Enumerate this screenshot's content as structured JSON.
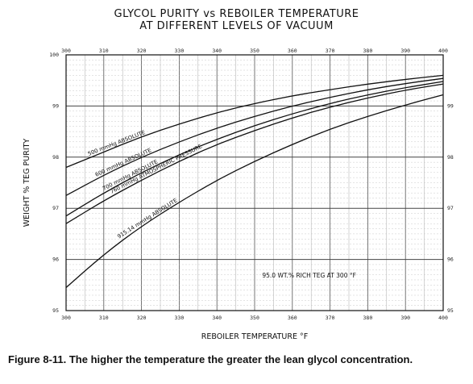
{
  "chart_data": {
    "type": "line",
    "title": "GLYCOL PURITY vs REBOILER TEMPERATURE",
    "subtitle": "AT DIFFERENT LEVELS OF VACUUM",
    "xlabel": "REBOILER TEMPERATURE °F",
    "ylabel": "WEIGHT % TEG PURITY",
    "xlim": [
      300,
      400
    ],
    "ylim": [
      95,
      100
    ],
    "x_ticks": [
      "300",
      "310",
      "320",
      "330",
      "340",
      "350",
      "360",
      "370",
      "380",
      "390",
      "400"
    ],
    "y_ticks": [
      "95",
      "96",
      "97",
      "98",
      "99",
      "100"
    ],
    "y_ticks_right": [
      "95",
      "96",
      "97",
      "98",
      "99"
    ],
    "grid": true,
    "annotation": "95.0 WT.% RICH TEG AT 300 °F",
    "series": [
      {
        "name": "500 mmHg ABSOLUTE",
        "x": [
          300,
          310,
          320,
          330,
          340,
          350,
          360,
          370,
          380,
          390,
          400
        ],
        "y": [
          97.8,
          98.1,
          98.4,
          98.65,
          98.87,
          99.05,
          99.2,
          99.32,
          99.43,
          99.52,
          99.6
        ]
      },
      {
        "name": "600 mmHg ABSOLUTE",
        "x": [
          300,
          310,
          320,
          330,
          340,
          350,
          360,
          370,
          380,
          390,
          400
        ],
        "y": [
          97.25,
          97.65,
          98.0,
          98.3,
          98.57,
          98.8,
          99.0,
          99.17,
          99.32,
          99.44,
          99.54
        ]
      },
      {
        "name": "700 mmHg ABSOLUTE",
        "x": [
          300,
          310,
          320,
          330,
          340,
          350,
          360,
          370,
          380,
          390,
          400
        ],
        "y": [
          96.85,
          97.3,
          97.7,
          98.05,
          98.35,
          98.62,
          98.85,
          99.05,
          99.22,
          99.36,
          99.48
        ]
      },
      {
        "name": "760 mmHg ATMOSPHERIC PRESSURE",
        "x": [
          300,
          310,
          320,
          330,
          340,
          350,
          360,
          370,
          380,
          390,
          400
        ],
        "y": [
          96.7,
          97.15,
          97.55,
          97.92,
          98.25,
          98.52,
          98.77,
          98.98,
          99.16,
          99.31,
          99.43
        ]
      },
      {
        "name": "915.14 mmHg ABSOLUTE",
        "x": [
          300,
          310,
          320,
          330,
          340,
          350,
          360,
          370,
          380,
          390,
          400
        ],
        "y": [
          95.45,
          96.1,
          96.65,
          97.12,
          97.55,
          97.92,
          98.25,
          98.55,
          98.8,
          99.02,
          99.22
        ]
      }
    ]
  },
  "caption": "Figure 8-11. The higher the temperature the greater the lean glycol concentration."
}
